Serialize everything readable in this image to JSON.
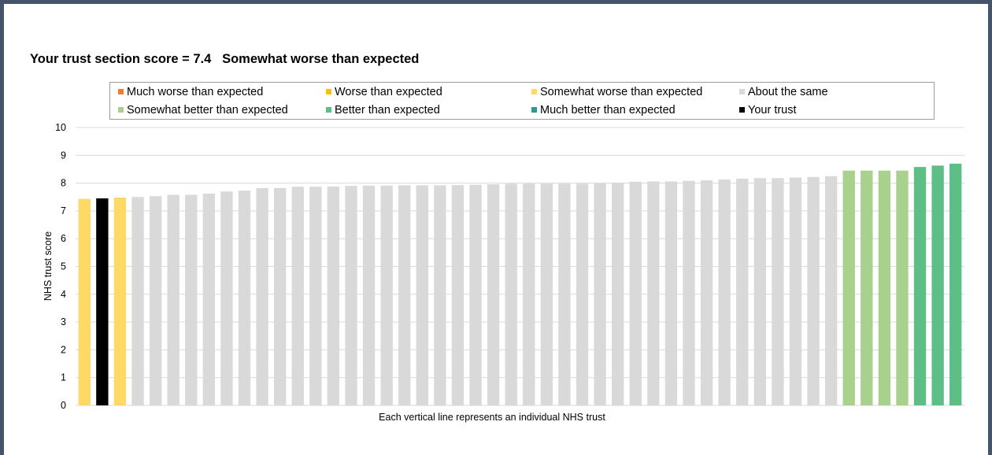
{
  "title": "Your trust section score = 7.4   Somewhat worse than expected",
  "legend": [
    {
      "label": "Much worse than expected",
      "color": "#ed7d31"
    },
    {
      "label": "Worse than expected",
      "color": "#ffc000"
    },
    {
      "label": "Somewhat worse than expected",
      "color": "#ffd966"
    },
    {
      "label": "About the same",
      "color": "#d9d9d9"
    },
    {
      "label": "Somewhat better than expected",
      "color": "#a9d18e"
    },
    {
      "label": "Better than expected",
      "color": "#5dbf86"
    },
    {
      "label": "Much better than expected",
      "color": "#2e9a94"
    },
    {
      "label": "Your trust",
      "color": "#000000"
    }
  ],
  "chart_data": {
    "type": "bar",
    "title": "Your trust section score = 7.4   Somewhat worse than expected",
    "xlabel": "Each vertical line represents an individual NHS trust",
    "ylabel": "NHS trust score",
    "ylim": [
      0,
      10
    ],
    "yticks": [
      "0",
      "1",
      "2",
      "3",
      "4",
      "5",
      "6",
      "7",
      "8",
      "9",
      "10"
    ],
    "grid": true,
    "legend_position": "top",
    "values": [
      7.43,
      7.45,
      7.48,
      7.5,
      7.53,
      7.58,
      7.58,
      7.62,
      7.7,
      7.73,
      7.82,
      7.82,
      7.87,
      7.87,
      7.88,
      7.9,
      7.91,
      7.91,
      7.92,
      7.92,
      7.92,
      7.93,
      7.94,
      7.96,
      7.98,
      7.98,
      7.98,
      7.98,
      7.98,
      7.99,
      8.02,
      8.05,
      8.06,
      8.06,
      8.08,
      8.1,
      8.13,
      8.16,
      8.18,
      8.18,
      8.2,
      8.22,
      8.25,
      8.45,
      8.45,
      8.45,
      8.45,
      8.58,
      8.63,
      8.7
    ],
    "bar_categories": [
      "Somewhat worse than expected",
      "Your trust",
      "Somewhat worse than expected",
      "About the same",
      "About the same",
      "About the same",
      "About the same",
      "About the same",
      "About the same",
      "About the same",
      "About the same",
      "About the same",
      "About the same",
      "About the same",
      "About the same",
      "About the same",
      "About the same",
      "About the same",
      "About the same",
      "About the same",
      "About the same",
      "About the same",
      "About the same",
      "About the same",
      "About the same",
      "About the same",
      "About the same",
      "About the same",
      "About the same",
      "About the same",
      "About the same",
      "About the same",
      "About the same",
      "About the same",
      "About the same",
      "About the same",
      "About the same",
      "About the same",
      "About the same",
      "About the same",
      "About the same",
      "About the same",
      "About the same",
      "Somewhat better than expected",
      "Somewhat better than expected",
      "Somewhat better than expected",
      "Somewhat better than expected",
      "Better than expected",
      "Better than expected",
      "Better than expected"
    ],
    "colors": {
      "Somewhat worse than expected": "#ffd966",
      "Your trust": "#000000",
      "About the same": "#d9d9d9",
      "Somewhat better than expected": "#a9d18e",
      "Better than expected": "#5dbf86"
    },
    "grid_color": "#d9d9d9"
  }
}
